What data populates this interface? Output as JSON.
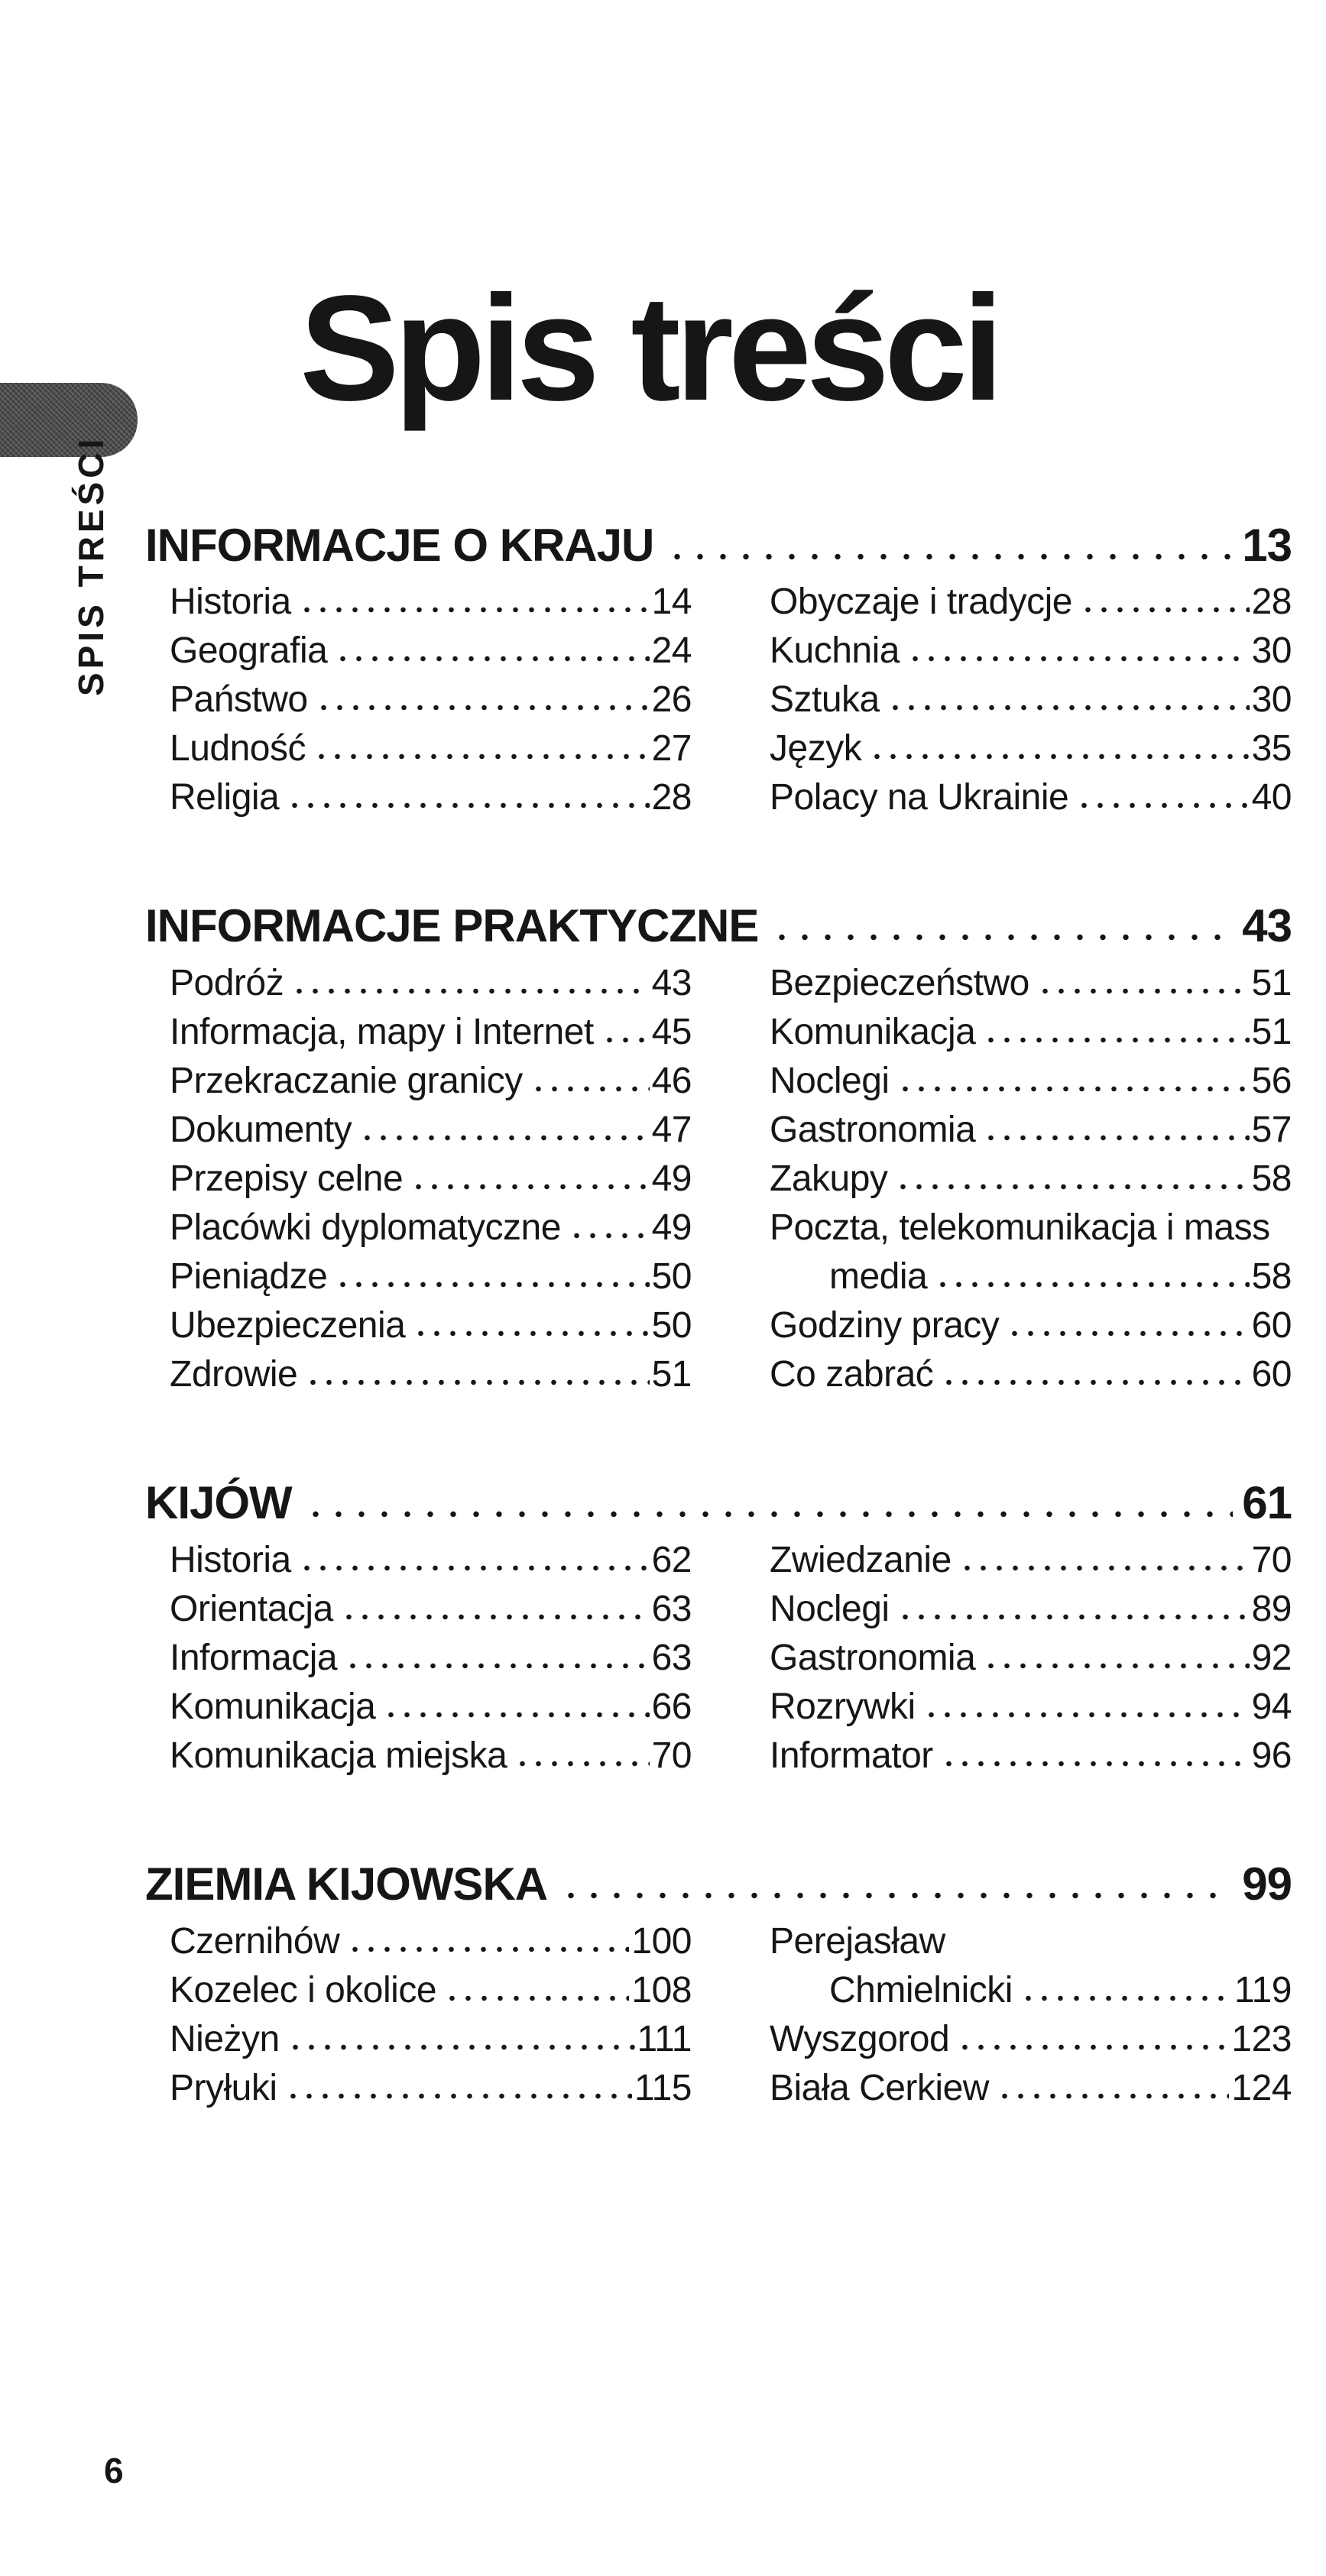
{
  "page": {
    "sidebar_label": "SPIS TREŚCI",
    "title": "Spis treści",
    "page_number": "6",
    "ink_color": "#161616",
    "paper_color": "#ffffff",
    "tab_color": "#4a4a4a"
  },
  "sections": [
    {
      "heading": "INFORMACJE O KRAJU",
      "page": "13",
      "left": [
        {
          "label": "Historia",
          "page": "14"
        },
        {
          "label": "Geografia",
          "page": "24"
        },
        {
          "label": "Państwo",
          "page": "26"
        },
        {
          "label": "Ludność",
          "page": "27"
        },
        {
          "label": "Religia",
          "page": "28"
        }
      ],
      "right": [
        {
          "label": "Obyczaje i tradycje",
          "page": "28"
        },
        {
          "label": "Kuchnia",
          "page": "30"
        },
        {
          "label": "Sztuka",
          "page": "30"
        },
        {
          "label": "Język",
          "page": "35"
        },
        {
          "label": "Polacy na Ukrainie",
          "page": "40"
        }
      ]
    },
    {
      "heading": "INFORMACJE PRAKTYCZNE",
      "page": "43",
      "left": [
        {
          "label": "Podróż",
          "page": "43"
        },
        {
          "label": "Informacja, mapy i Internet",
          "page": "45"
        },
        {
          "label": "Przekraczanie granicy",
          "page": "46"
        },
        {
          "label": "Dokumenty",
          "page": "47"
        },
        {
          "label": "Przepisy celne",
          "page": "49"
        },
        {
          "label": "Placówki dyplomatyczne",
          "page": "49"
        },
        {
          "label": "Pieniądze",
          "page": "50"
        },
        {
          "label": "Ubezpieczenia",
          "page": "50"
        },
        {
          "label": "Zdrowie",
          "page": "51"
        }
      ],
      "right": [
        {
          "label": "Bezpieczeństwo",
          "page": "51"
        },
        {
          "label": "Komunikacja",
          "page": "51"
        },
        {
          "label": "Noclegi",
          "page": "56"
        },
        {
          "label": "Gastronomia",
          "page": "57"
        },
        {
          "label": "Zakupy",
          "page": "58"
        },
        {
          "label": "Poczta, telekomunikacja i mass",
          "page": ""
        },
        {
          "label": "media",
          "page": "58",
          "indent": true
        },
        {
          "label": "Godziny pracy",
          "page": "60"
        },
        {
          "label": "Co zabrać",
          "page": "60"
        }
      ]
    },
    {
      "heading": "KIJÓW",
      "page": "61",
      "left": [
        {
          "label": "Historia",
          "page": "62"
        },
        {
          "label": "Orientacja",
          "page": "63"
        },
        {
          "label": "Informacja",
          "page": "63"
        },
        {
          "label": "Komunikacja",
          "page": "66"
        },
        {
          "label": "Komunikacja miejska",
          "page": "70"
        }
      ],
      "right": [
        {
          "label": "Zwiedzanie",
          "page": "70"
        },
        {
          "label": "Noclegi",
          "page": "89"
        },
        {
          "label": "Gastronomia",
          "page": "92"
        },
        {
          "label": "Rozrywki",
          "page": "94"
        },
        {
          "label": "Informator",
          "page": "96"
        }
      ]
    },
    {
      "heading": "ZIEMIA KIJOWSKA",
      "page": "99",
      "left": [
        {
          "label": "Czernihów",
          "page": "100"
        },
        {
          "label": "Kozelec i okolice",
          "page": "108"
        },
        {
          "label": "Nieżyn",
          "page": "111"
        },
        {
          "label": "Pryłuki",
          "page": "115"
        }
      ],
      "right": [
        {
          "label": "Perejasław",
          "page": ""
        },
        {
          "label": "Chmielnicki",
          "page": "119",
          "indent": true
        },
        {
          "label": "Wyszgorod",
          "page": "123"
        },
        {
          "label": "Biała Cerkiew",
          "page": "124"
        }
      ]
    }
  ]
}
